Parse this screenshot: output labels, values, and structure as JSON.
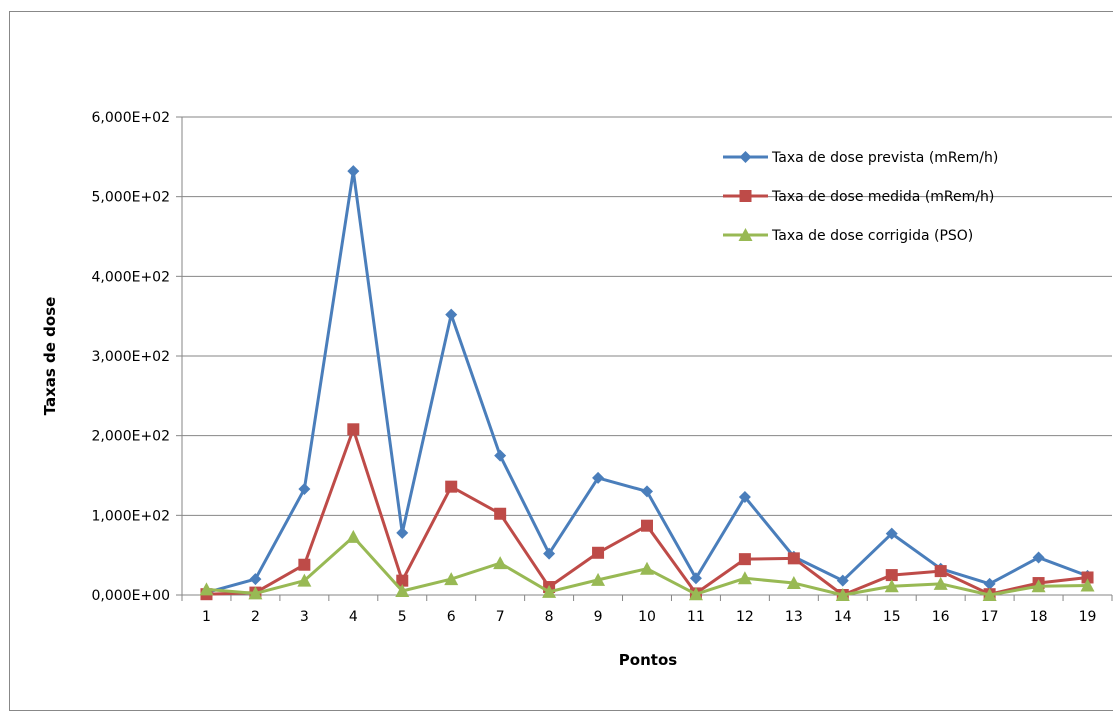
{
  "chart_data": {
    "type": "line",
    "xlabel": "Pontos",
    "ylabel": "Taxas de dose",
    "ylim": [
      0,
      600
    ],
    "y_ticks": [
      "0,000E+00",
      "1,000E+02",
      "2,000E+02",
      "3,000E+02",
      "4,000E+02",
      "5,000E+02",
      "6,000E+02"
    ],
    "categories": [
      "1",
      "2",
      "3",
      "4",
      "5",
      "6",
      "7",
      "8",
      "9",
      "10",
      "11",
      "12",
      "13",
      "14",
      "15",
      "16",
      "17",
      "18",
      "19"
    ],
    "grid": "horizontal",
    "legend_position": "top-right",
    "series": [
      {
        "name": "Taxa de dose prevista (mRem/h)",
        "color": "#4A7EBB",
        "marker": "diamond",
        "values": [
          3,
          20,
          133,
          532,
          78,
          352,
          175,
          52,
          147,
          130,
          21,
          123,
          48,
          18,
          77,
          33,
          14,
          47,
          24
        ]
      },
      {
        "name": "Taxa de dose medida (mRem/h)",
        "color": "#BE4B48",
        "marker": "square",
        "values": [
          1,
          3,
          38,
          208,
          18,
          136,
          102,
          10,
          53,
          87,
          2,
          45,
          46,
          0,
          25,
          30,
          1,
          15,
          22
        ]
      },
      {
        "name": "Taxa de dose corrigida (PSO)",
        "color": "#98B954",
        "marker": "triangle",
        "values": [
          7,
          2,
          18,
          73,
          5,
          20,
          40,
          4,
          19,
          33,
          1,
          21,
          15,
          0,
          11,
          14,
          0,
          11,
          12
        ]
      }
    ]
  }
}
